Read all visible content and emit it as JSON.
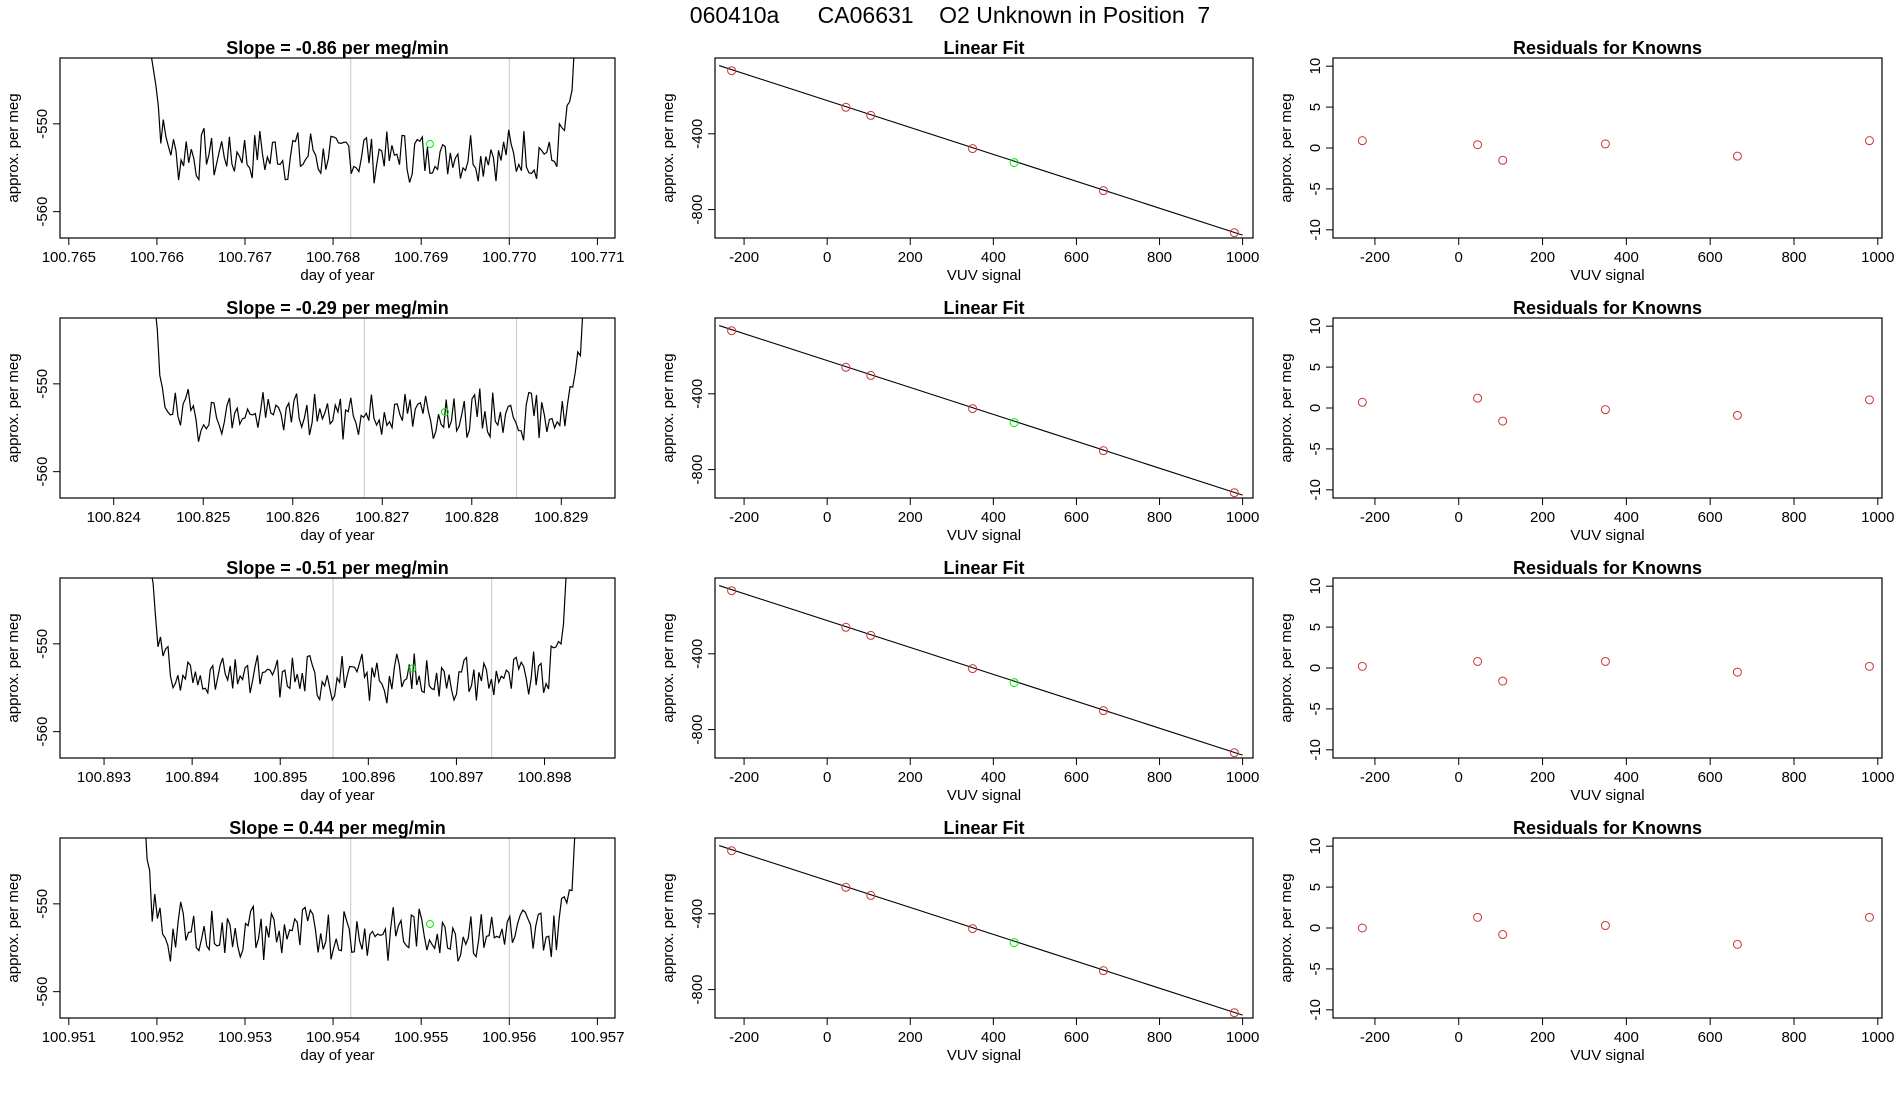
{
  "figure": {
    "title": "060410a      CA06631    O2 Unknown in Position  7"
  },
  "colors": {
    "line": "#000000",
    "known_points": "#cd3333",
    "unknown_point": "#00ee00",
    "marker_lines": "#c8c8c8",
    "frame": "#000000"
  },
  "chart_data": [
    {
      "panel": "timeseries",
      "row": 1,
      "type": "line",
      "title": "Slope =  -0.86  per meg/min",
      "xlabel": "day of year",
      "ylabel": "approx. per meg",
      "xlim": [
        100.7649,
        100.7712
      ],
      "ylim": [
        -563.0,
        -542.5
      ],
      "xticks": [
        100.765,
        100.766,
        100.767,
        100.768,
        100.769,
        100.77,
        100.771
      ],
      "xtick_labels": [
        "100.765",
        "100.766",
        "100.767",
        "100.768",
        "100.769",
        "100.770",
        "100.771"
      ],
      "yticks": [
        -560,
        -550
      ],
      "ytick_labels": [
        "-560",
        "-550"
      ],
      "x_start": 100.7659,
      "x_end": 100.7708,
      "base": -553.5,
      "amp": 2.5,
      "seed": 7,
      "vlines": [
        100.7682,
        100.77
      ],
      "unknown_point": {
        "x": 100.7691,
        "y": -552.3
      }
    },
    {
      "panel": "linear_fit",
      "row": 1,
      "type": "scatter",
      "title": "Linear Fit",
      "xlabel": "VUV signal",
      "ylabel": "approx. per meg",
      "xlim": [
        -270,
        1025
      ],
      "ylim": [
        -950,
        0
      ],
      "xticks": [
        -200,
        0,
        200,
        400,
        600,
        800,
        1000
      ],
      "xtick_labels": [
        "-200",
        "0",
        "200",
        "400",
        "600",
        "800",
        "1000"
      ],
      "yticks": [
        -800,
        -400
      ],
      "ytick_labels": [
        "-800",
        "-400"
      ],
      "fit_line": {
        "x": [
          -260,
          1000
        ],
        "y": [
          -40,
          -935
        ]
      },
      "known_points": {
        "x": [
          -230,
          45,
          105,
          350,
          665,
          980
        ],
        "y": [
          -67,
          -260,
          -303,
          -478,
          -700,
          -922
        ]
      },
      "unknown_point": {
        "x": 450,
        "y": -552
      }
    },
    {
      "panel": "residuals",
      "row": 1,
      "type": "scatter",
      "title": "Residuals for Knowns",
      "xlabel": "VUV signal",
      "ylabel": "approx. per meg",
      "xlim": [
        -300,
        1010
      ],
      "ylim": [
        -11,
        11
      ],
      "xticks": [
        -200,
        0,
        200,
        400,
        600,
        800,
        1000
      ],
      "xtick_labels": [
        "-200",
        "0",
        "200",
        "400",
        "600",
        "800",
        "1000"
      ],
      "yticks": [
        -10,
        -5,
        0,
        5,
        10
      ],
      "ytick_labels": [
        "-10",
        "-5",
        "0",
        "5",
        "10"
      ],
      "known_points": {
        "x": [
          -230,
          45,
          105,
          350,
          665,
          980
        ],
        "y": [
          0.9,
          0.4,
          -1.5,
          0.5,
          -1.0,
          0.9
        ]
      }
    },
    {
      "panel": "timeseries",
      "row": 2,
      "type": "line",
      "title": "Slope =  -0.29  per meg/min",
      "xlabel": "day of year",
      "ylabel": "approx. per meg",
      "xlim": [
        100.8234,
        100.8296
      ],
      "ylim": [
        -563.0,
        -542.5
      ],
      "xticks": [
        100.824,
        100.825,
        100.826,
        100.827,
        100.828,
        100.829
      ],
      "xtick_labels": [
        "100.824",
        "100.825",
        "100.826",
        "100.827",
        "100.828",
        "100.829"
      ],
      "yticks": [
        -560,
        -550
      ],
      "ytick_labels": [
        "-560",
        "-550"
      ],
      "x_start": 100.8244,
      "x_end": 100.8293,
      "base": -553.5,
      "amp": 2.3,
      "seed": 19,
      "vlines": [
        100.8268,
        100.8285
      ],
      "unknown_point": {
        "x": 100.8277,
        "y": -553.2
      }
    },
    {
      "panel": "linear_fit",
      "row": 2,
      "type": "scatter",
      "title": "Linear Fit",
      "xlabel": "VUV signal",
      "ylabel": "approx. per meg",
      "xlim": [
        -270,
        1025
      ],
      "ylim": [
        -950,
        0
      ],
      "xticks": [
        -200,
        0,
        200,
        400,
        600,
        800,
        1000
      ],
      "xtick_labels": [
        "-200",
        "0",
        "200",
        "400",
        "600",
        "800",
        "1000"
      ],
      "yticks": [
        -800,
        -400
      ],
      "ytick_labels": [
        "-800",
        "-400"
      ],
      "fit_line": {
        "x": [
          -260,
          1000
        ],
        "y": [
          -40,
          -935
        ]
      },
      "known_points": {
        "x": [
          -230,
          45,
          105,
          350,
          665,
          980
        ],
        "y": [
          -67,
          -260,
          -303,
          -478,
          -700,
          -922
        ]
      },
      "unknown_point": {
        "x": 450,
        "y": -552
      }
    },
    {
      "panel": "residuals",
      "row": 2,
      "type": "scatter",
      "title": "Residuals for Knowns",
      "xlabel": "VUV signal",
      "ylabel": "approx. per meg",
      "xlim": [
        -300,
        1010
      ],
      "ylim": [
        -11,
        11
      ],
      "xticks": [
        -200,
        0,
        200,
        400,
        600,
        800,
        1000
      ],
      "xtick_labels": [
        "-200",
        "0",
        "200",
        "400",
        "600",
        "800",
        "1000"
      ],
      "yticks": [
        -10,
        -5,
        0,
        5,
        10
      ],
      "ytick_labels": [
        "-10",
        "-5",
        "0",
        "5",
        "10"
      ],
      "known_points": {
        "x": [
          -230,
          45,
          105,
          350,
          665,
          980
        ],
        "y": [
          0.7,
          1.2,
          -1.6,
          -0.2,
          -0.9,
          1.0
        ]
      }
    },
    {
      "panel": "timeseries",
      "row": 3,
      "type": "line",
      "title": "Slope =  -0.51  per meg/min",
      "xlabel": "day of year",
      "ylabel": "approx. per meg",
      "xlim": [
        100.8925,
        100.8988
      ],
      "ylim": [
        -563.0,
        -542.5
      ],
      "xticks": [
        100.893,
        100.894,
        100.895,
        100.896,
        100.897,
        100.898
      ],
      "xtick_labels": [
        "100.893",
        "100.894",
        "100.895",
        "100.896",
        "100.897",
        "100.898"
      ],
      "yticks": [
        -560,
        -550
      ],
      "ytick_labels": [
        "-560",
        "-550"
      ],
      "x_start": 100.8935,
      "x_end": 100.8983,
      "base": -553.8,
      "amp": 2.2,
      "seed": 31,
      "vlines": [
        100.8956,
        100.8974
      ],
      "unknown_point": {
        "x": 100.8965,
        "y": -552.8
      }
    },
    {
      "panel": "linear_fit",
      "row": 3,
      "type": "scatter",
      "title": "Linear Fit",
      "xlabel": "VUV signal",
      "ylabel": "approx. per meg",
      "xlim": [
        -270,
        1025
      ],
      "ylim": [
        -950,
        0
      ],
      "xticks": [
        -200,
        0,
        200,
        400,
        600,
        800,
        1000
      ],
      "xtick_labels": [
        "-200",
        "0",
        "200",
        "400",
        "600",
        "800",
        "1000"
      ],
      "yticks": [
        -800,
        -400
      ],
      "ytick_labels": [
        "-800",
        "-400"
      ],
      "fit_line": {
        "x": [
          -260,
          1000
        ],
        "y": [
          -40,
          -935
        ]
      },
      "known_points": {
        "x": [
          -230,
          45,
          105,
          350,
          665,
          980
        ],
        "y": [
          -67,
          -260,
          -303,
          -478,
          -700,
          -922
        ]
      },
      "unknown_point": {
        "x": 450,
        "y": -552
      }
    },
    {
      "panel": "residuals",
      "row": 3,
      "type": "scatter",
      "title": "Residuals for Knowns",
      "xlabel": "VUV signal",
      "ylabel": "approx. per meg",
      "xlim": [
        -300,
        1010
      ],
      "ylim": [
        -11,
        11
      ],
      "xticks": [
        -200,
        0,
        200,
        400,
        600,
        800,
        1000
      ],
      "xtick_labels": [
        "-200",
        "0",
        "200",
        "400",
        "600",
        "800",
        "1000"
      ],
      "yticks": [
        -10,
        -5,
        0,
        5,
        10
      ],
      "ytick_labels": [
        "-10",
        "-5",
        "0",
        "5",
        "10"
      ],
      "known_points": {
        "x": [
          -230,
          45,
          105,
          350,
          665,
          980
        ],
        "y": [
          0.2,
          0.8,
          -1.6,
          0.8,
          -0.5,
          0.2
        ]
      }
    },
    {
      "panel": "timeseries",
      "row": 4,
      "type": "line",
      "title": "Slope =  0.44  per meg/min",
      "xlabel": "day of year",
      "ylabel": "approx. per meg",
      "xlim": [
        100.9509,
        100.9572
      ],
      "ylim": [
        -563.0,
        -542.5
      ],
      "xticks": [
        100.951,
        100.952,
        100.953,
        100.954,
        100.955,
        100.956,
        100.957
      ],
      "xtick_labels": [
        "100.951",
        "100.952",
        "100.953",
        "100.954",
        "100.955",
        "100.956",
        "100.957"
      ],
      "yticks": [
        -560,
        -550
      ],
      "ytick_labels": [
        "-560",
        "-550"
      ],
      "x_start": 100.9518,
      "x_end": 100.9568,
      "base": -553.3,
      "amp": 2.8,
      "seed": 43,
      "vlines": [
        100.9542,
        100.956
      ],
      "unknown_point": {
        "x": 100.9551,
        "y": -552.3
      }
    },
    {
      "panel": "linear_fit",
      "row": 4,
      "type": "scatter",
      "title": "Linear Fit",
      "xlabel": "VUV signal",
      "ylabel": "approx. per meg",
      "xlim": [
        -270,
        1025
      ],
      "ylim": [
        -950,
        0
      ],
      "xticks": [
        -200,
        0,
        200,
        400,
        600,
        800,
        1000
      ],
      "xtick_labels": [
        "-200",
        "0",
        "200",
        "400",
        "600",
        "800",
        "1000"
      ],
      "yticks": [
        -800,
        -400
      ],
      "ytick_labels": [
        "-800",
        "-400"
      ],
      "fit_line": {
        "x": [
          -260,
          1000
        ],
        "y": [
          -40,
          -935
        ]
      },
      "known_points": {
        "x": [
          -230,
          45,
          105,
          350,
          665,
          980
        ],
        "y": [
          -67,
          -260,
          -303,
          -478,
          -700,
          -922
        ]
      },
      "unknown_point": {
        "x": 450,
        "y": -552
      }
    },
    {
      "panel": "residuals",
      "row": 4,
      "type": "scatter",
      "title": "Residuals for Knowns",
      "xlabel": "VUV signal",
      "ylabel": "approx. per meg",
      "xlim": [
        -300,
        1010
      ],
      "ylim": [
        -11,
        11
      ],
      "xticks": [
        -200,
        0,
        200,
        400,
        600,
        800,
        1000
      ],
      "xtick_labels": [
        "-200",
        "0",
        "200",
        "400",
        "600",
        "800",
        "1000"
      ],
      "yticks": [
        -10,
        -5,
        0,
        5,
        10
      ],
      "ytick_labels": [
        "-10",
        "-5",
        "0",
        "5",
        "10"
      ],
      "known_points": {
        "x": [
          -230,
          45,
          105,
          350,
          665,
          980
        ],
        "y": [
          0.0,
          1.3,
          -0.8,
          0.3,
          -2.0,
          1.3
        ]
      }
    }
  ]
}
